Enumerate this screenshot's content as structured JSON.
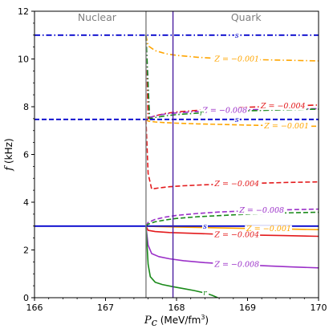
{
  "chart_data": {
    "type": "line",
    "xlabel_italic": "P",
    "xlabel_sub": "c",
    "xlabel_unit": " (MeV/fm",
    "xlabel_sup": "3",
    "xlabel_close": ")",
    "ylabel_italic": "f",
    "ylabel_unit": " (kHz)",
    "xlim": [
      166,
      170
    ],
    "ylim": [
      0,
      12
    ],
    "xticks": [
      "166",
      "167",
      "168",
      "169",
      "170"
    ],
    "yticks": [
      "0",
      "2",
      "4",
      "6",
      "8",
      "10",
      "12"
    ],
    "grid": false,
    "region_labels": {
      "nuclear": "Nuclear",
      "quark": "Quark"
    },
    "vertical_lines": [
      {
        "x": 167.57,
        "color": "#808080"
      },
      {
        "x": 167.95,
        "color": "#4b1fa0"
      }
    ],
    "horizontal_lines": [
      {
        "y": 11.0,
        "color": "#0000cc",
        "style": "dashdot"
      },
      {
        "y": 7.47,
        "color": "#0000cc",
        "style": "dashed"
      },
      {
        "y": 3.0,
        "color": "#0000cc",
        "style": "solid"
      }
    ],
    "colors": {
      "z001": "#ffa500",
      "z004": "#e31a1c",
      "z008": "#9b30c8",
      "r": "#1a8a1a",
      "s": "#0000cc"
    },
    "series": [
      {
        "label": "Z = −0.001",
        "color_key": "z001",
        "style": "dashdot",
        "label_at": 168.85,
        "x": [
          167.57,
          167.6,
          167.7,
          167.85,
          168.0,
          168.3,
          168.6,
          169.0,
          169.5,
          170.0
        ],
        "y": [
          11.0,
          10.55,
          10.35,
          10.22,
          10.15,
          10.07,
          10.02,
          9.98,
          9.95,
          9.92
        ]
      },
      {
        "label": "Z = −0.001",
        "color_key": "z001",
        "style": "dashed",
        "label_at": 169.55,
        "x": [
          167.57,
          167.6,
          167.7,
          167.85,
          168.0,
          168.3,
          168.6,
          169.0,
          169.5,
          170.0
        ],
        "y": [
          7.47,
          7.4,
          7.36,
          7.33,
          7.31,
          7.28,
          7.26,
          7.23,
          7.2,
          7.18
        ]
      },
      {
        "label": "Z = −0.001",
        "color_key": "z001",
        "style": "solid",
        "label_at": 169.3,
        "x": [
          167.57,
          167.7,
          168.0,
          168.5,
          169.0,
          169.5,
          170.0
        ],
        "y": [
          3.0,
          2.98,
          2.96,
          2.93,
          2.9,
          2.88,
          2.85
        ]
      },
      {
        "label": "Z = −0.004",
        "color_key": "z004",
        "style": "dashdot",
        "label_at": 169.5,
        "x": [
          167.57,
          167.6,
          167.7,
          167.85,
          168.0,
          168.3,
          168.6,
          169.0,
          169.5,
          170.0
        ],
        "y": [
          11.0,
          7.5,
          7.62,
          7.72,
          7.78,
          7.85,
          7.92,
          7.98,
          8.03,
          8.07
        ]
      },
      {
        "label": "Z = −0.004",
        "color_key": "z004",
        "style": "dashed",
        "label_at": 168.85,
        "x": [
          167.57,
          167.6,
          167.65,
          167.75,
          167.9,
          168.1,
          168.4,
          168.8,
          169.2,
          169.6,
          170.0
        ],
        "y": [
          7.47,
          5.2,
          4.55,
          4.6,
          4.65,
          4.69,
          4.73,
          4.77,
          4.8,
          4.83,
          4.85
        ]
      },
      {
        "label": "Z = −0.004",
        "color_key": "z004",
        "style": "solid",
        "label_at": 168.85,
        "x": [
          167.57,
          167.6,
          167.7,
          167.9,
          168.2,
          168.6,
          169.0,
          169.5,
          170.0
        ],
        "y": [
          3.0,
          2.82,
          2.77,
          2.73,
          2.7,
          2.66,
          2.63,
          2.6,
          2.57
        ]
      },
      {
        "label": "Z = −0.008",
        "color_key": "z008",
        "style": "dashdot",
        "label_at": 168.68,
        "x": [
          167.57,
          167.62,
          167.7,
          167.85,
          168.0,
          168.3,
          168.7,
          169.1,
          169.6,
          170.0
        ],
        "y": [
          11.0,
          7.55,
          7.62,
          7.7,
          7.74,
          7.8,
          7.85,
          7.88,
          7.9,
          7.92
        ]
      },
      {
        "label": "Z = −0.008",
        "color_key": "z008",
        "style": "dashed",
        "label_at": 169.2,
        "x": [
          167.57,
          167.6,
          167.7,
          167.85,
          168.0,
          168.3,
          168.6,
          169.0,
          169.5,
          170.0
        ],
        "y": [
          3.0,
          3.15,
          3.28,
          3.38,
          3.45,
          3.53,
          3.59,
          3.64,
          3.68,
          3.71
        ]
      },
      {
        "label": "Z = −0.008",
        "color_key": "z008",
        "style": "solid",
        "label_at": 168.85,
        "x": [
          167.57,
          167.6,
          167.65,
          167.75,
          167.9,
          168.1,
          168.4,
          168.8,
          169.2,
          169.6,
          170.0
        ],
        "y": [
          3.0,
          2.2,
          1.85,
          1.72,
          1.63,
          1.55,
          1.47,
          1.4,
          1.34,
          1.29,
          1.25
        ]
      },
      {
        "label": "r",
        "color_key": "r",
        "style": "dashdot",
        "label_at": 168.35,
        "x": [
          167.57,
          167.62,
          167.7,
          167.85,
          168.0,
          168.3,
          168.6,
          169.0,
          169.5,
          170.0
        ],
        "y": [
          11.0,
          7.5,
          7.55,
          7.62,
          7.67,
          7.73,
          7.78,
          7.83,
          7.87,
          7.9
        ]
      },
      {
        "label": "r",
        "color_key": "r",
        "style": "dashed",
        "label_at": null,
        "x": [
          167.57,
          167.6,
          167.7,
          167.85,
          168.0,
          168.3,
          168.6,
          169.0,
          169.5,
          170.0
        ],
        "y": [
          3.0,
          3.08,
          3.18,
          3.26,
          3.32,
          3.39,
          3.44,
          3.5,
          3.55,
          3.58
        ]
      },
      {
        "label": "r",
        "color_key": "r",
        "style": "solid",
        "label_at": 168.4,
        "x": [
          167.57,
          167.6,
          167.63,
          167.7,
          167.8,
          167.95,
          168.1,
          168.25,
          168.4,
          168.5,
          168.58
        ],
        "y": [
          3.0,
          1.4,
          0.88,
          0.65,
          0.55,
          0.46,
          0.38,
          0.3,
          0.2,
          0.1,
          0.0
        ]
      },
      {
        "label": "s",
        "color_key": "s",
        "style": "dashdot",
        "label_at": 168.85,
        "x": [
          166,
          170
        ],
        "y": [
          11.0,
          11.0
        ]
      },
      {
        "label": "s",
        "color_key": "s",
        "style": "dashed",
        "label_at": 168.85,
        "x": [
          166,
          170
        ],
        "y": [
          7.47,
          7.47
        ]
      },
      {
        "label": "s",
        "color_key": "s",
        "style": "solid",
        "label_at": 168.4,
        "x": [
          166,
          170
        ],
        "y": [
          3.0,
          3.0
        ]
      }
    ]
  }
}
